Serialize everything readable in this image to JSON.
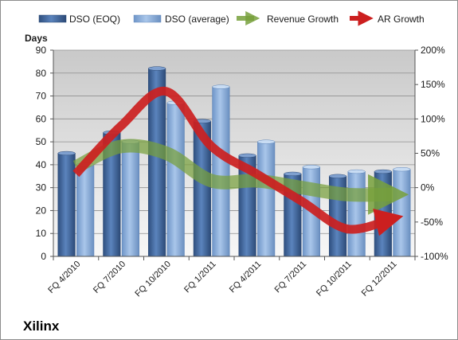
{
  "chart_data": {
    "type": "bar",
    "categories": [
      "FQ 4/2010",
      "FQ 7/2010",
      "FQ 10/2010",
      "FQ 1/2011",
      "FQ 4/2011",
      "FQ 7/2011",
      "FQ 10/2011",
      "FQ 12/2011"
    ],
    "series": [
      {
        "name": "DSO (EOQ)",
        "type": "bar",
        "axis": "left",
        "color": "#4a6fa5",
        "values": [
          45,
          54,
          82,
          59,
          44,
          36,
          35,
          37
        ]
      },
      {
        "name": "DSO (average)",
        "type": "bar",
        "axis": "left",
        "color": "#9dbbe0",
        "values": [
          40,
          50,
          67,
          74,
          50,
          39,
          37,
          38
        ]
      },
      {
        "name": "Revenue Growth",
        "type": "line",
        "axis": "right",
        "color": "#77a03b",
        "values": [
          30,
          60,
          50,
          10,
          10,
          0,
          -10,
          -10
        ]
      },
      {
        "name": "AR Growth",
        "type": "line",
        "axis": "right",
        "color": "#cc1f1f",
        "values": [
          20,
          90,
          140,
          60,
          20,
          -20,
          -60,
          -45
        ]
      }
    ],
    "ylabel": "Days",
    "ylim": [
      0,
      90
    ],
    "y_ticks": [
      "0",
      "10",
      "20",
      "30",
      "40",
      "50",
      "60",
      "70",
      "80",
      "90"
    ],
    "y2lim": [
      -100,
      200
    ],
    "y2_ticks": [
      "-100%",
      "-50%",
      "0%",
      "50%",
      "100%",
      "150%",
      "200%"
    ],
    "grid": true,
    "legend": "top",
    "annotation": "Xilinx"
  }
}
